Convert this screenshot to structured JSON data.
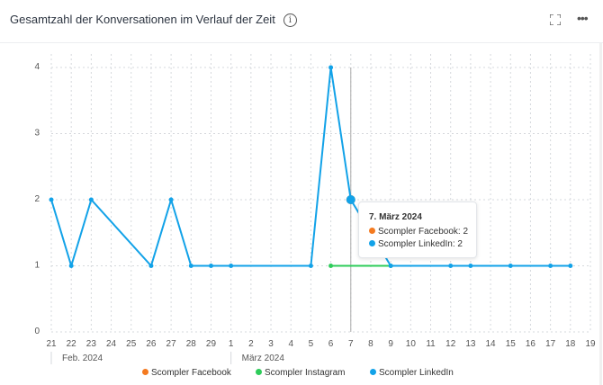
{
  "header": {
    "title": "Gesamtzahl der Konversationen im Verlauf der Zeit",
    "info_icon": "info-icon",
    "expand_icon": "expand-icon",
    "more_icon": "more-icon",
    "more_label": "•••"
  },
  "chart_data": {
    "type": "line",
    "title": "Gesamtzahl der Konversationen im Verlauf der Zeit",
    "x_ticks": [
      "21",
      "22",
      "23",
      "24",
      "25",
      "26",
      "27",
      "28",
      "29",
      "1",
      "2",
      "3",
      "4",
      "5",
      "6",
      "7",
      "8",
      "9",
      "10",
      "11",
      "12",
      "13",
      "14",
      "15",
      "16",
      "17",
      "18",
      "19"
    ],
    "month_labels": [
      {
        "label": "Feb. 2024",
        "start_tick": "21"
      },
      {
        "label": "März 2024",
        "start_tick": "1"
      }
    ],
    "y_ticks": [
      "0",
      "1",
      "2",
      "3",
      "4"
    ],
    "ylim": [
      0,
      4
    ],
    "grid": true,
    "legend": "bottom",
    "series": [
      {
        "name": "Scompler Facebook",
        "color": "#f47a20",
        "points": [
          [
            "7",
            2
          ]
        ]
      },
      {
        "name": "Scompler Instagram",
        "color": "#2ecc5a",
        "points": [
          [
            "6",
            1
          ],
          [
            "9",
            1
          ]
        ]
      },
      {
        "name": "Scompler LinkedIn",
        "color": "#12a2e8",
        "points": [
          [
            "21",
            2
          ],
          [
            "22",
            1
          ],
          [
            "23",
            2
          ],
          [
            "26",
            1
          ],
          [
            "27",
            2
          ],
          [
            "28",
            1
          ],
          [
            "29",
            1
          ],
          [
            "1",
            1
          ],
          [
            "5",
            1
          ],
          [
            "6",
            4
          ],
          [
            "7",
            2
          ],
          [
            "9",
            1
          ],
          [
            "12",
            1
          ],
          [
            "13",
            1
          ],
          [
            "15",
            1
          ],
          [
            "17",
            1
          ],
          [
            "18",
            1
          ]
        ]
      }
    ],
    "tooltip": {
      "date": "7. März 2024",
      "x_tick": "7",
      "rows": [
        {
          "label": "Scompler Facebook: 2",
          "color": "#f47a20"
        },
        {
          "label": "Scompler LinkedIn: 2",
          "color": "#12a2e8"
        }
      ]
    }
  }
}
